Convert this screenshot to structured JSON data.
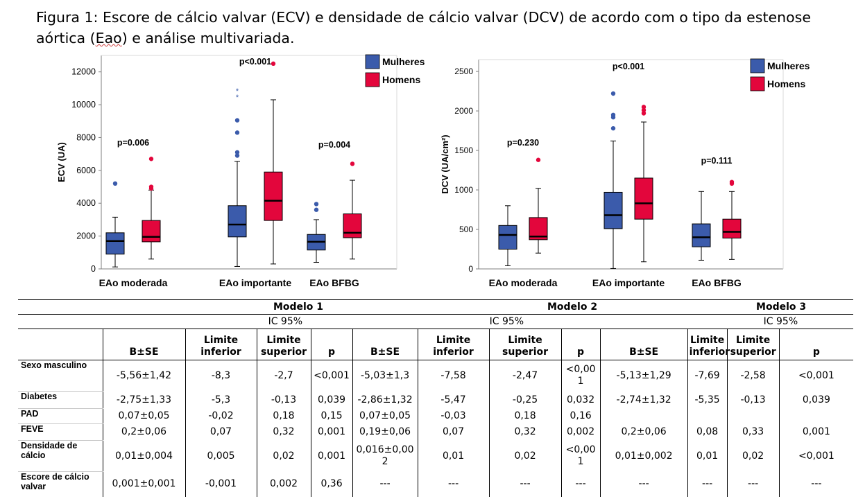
{
  "caption": {
    "text_a": "Figura 1: Escore de cálcio valvar (ECV) e densidade de cálcio valvar (DCV) de acordo com o tipo da estenose",
    "text_b": "aórtica (",
    "text_c": "Eao",
    "text_d": ") e análise multivariada."
  },
  "colors": {
    "mulheres": "#3b5bab",
    "homens": "#e3063c",
    "text": "#000000",
    "axis": "#7f7f7f"
  },
  "chart_data": [
    {
      "type": "box",
      "ylabel": "ECV (UA)",
      "ylim": [
        0,
        13000
      ],
      "yticks": [
        0,
        2000,
        4000,
        6000,
        8000,
        10000,
        12000
      ],
      "categories": [
        "EAo moderada",
        "EAo importante",
        "EAo BFBG"
      ],
      "pvalues": [
        "p=0.006",
        "p<0.001",
        "p=0.004"
      ],
      "legend": [
        "Mulheres",
        "Homens"
      ],
      "series": [
        {
          "name": "Mulheres",
          "boxes": [
            {
              "min": 120,
              "q1": 900,
              "median": 1700,
              "q3": 2200,
              "max": 3150,
              "outliers": [
                5200
              ],
              "extremes": []
            },
            {
              "min": 150,
              "q1": 1950,
              "median": 2700,
              "q3": 3850,
              "max": 6550,
              "outliers": [
                6900,
                7100,
                8300,
                9050
              ],
              "extremes": [
                10500,
                10900
              ]
            },
            {
              "min": 400,
              "q1": 1150,
              "median": 1650,
              "q3": 2100,
              "max": 3000,
              "outliers": [
                3600,
                3950
              ],
              "extremes": []
            }
          ]
        },
        {
          "name": "Homens",
          "boxes": [
            {
              "min": 600,
              "q1": 1650,
              "median": 1950,
              "q3": 2950,
              "max": 4800,
              "outliers": [
                4900,
                5000,
                6700
              ],
              "extremes": []
            },
            {
              "min": 300,
              "q1": 2950,
              "median": 4150,
              "q3": 5900,
              "max": 10300,
              "outliers": [
                12500
              ],
              "extremes": []
            },
            {
              "min": 600,
              "q1": 1900,
              "median": 2200,
              "q3": 3350,
              "max": 5400,
              "outliers": [
                6400
              ],
              "extremes": []
            }
          ]
        }
      ]
    },
    {
      "type": "box",
      "ylabel": "DCV (UA/cm²)",
      "ylim": [
        0,
        2650
      ],
      "yticks": [
        0,
        500,
        1000,
        1500,
        2000,
        2500
      ],
      "categories": [
        "EAo moderada",
        "EAo importante",
        "EAo BFBG"
      ],
      "pvalues": [
        "p=0.230",
        "p<0.001",
        "p=0.111"
      ],
      "legend": [
        "Mulheres",
        "Homens"
      ],
      "series": [
        {
          "name": "Mulheres",
          "boxes": [
            {
              "min": 40,
              "q1": 250,
              "median": 430,
              "q3": 550,
              "max": 800,
              "outliers": [],
              "extremes": []
            },
            {
              "min": 5,
              "q1": 510,
              "median": 680,
              "q3": 970,
              "max": 1620,
              "outliers": [
                1780,
                1920,
                1950,
                2220
              ],
              "extremes": []
            },
            {
              "min": 110,
              "q1": 280,
              "median": 400,
              "q3": 570,
              "max": 980,
              "outliers": [],
              "extremes": []
            }
          ]
        },
        {
          "name": "Homens",
          "boxes": [
            {
              "min": 200,
              "q1": 370,
              "median": 410,
              "q3": 650,
              "max": 1020,
              "outliers": [
                1380
              ],
              "extremes": []
            },
            {
              "min": 90,
              "q1": 630,
              "median": 830,
              "q3": 1150,
              "max": 1860,
              "outliers": [
                1970,
                2010,
                2050
              ],
              "extremes": []
            },
            {
              "min": 120,
              "q1": 390,
              "median": 470,
              "q3": 630,
              "max": 980,
              "outliers": [
                1080,
                1100
              ],
              "extremes": []
            }
          ]
        }
      ]
    }
  ],
  "table": {
    "models": [
      "Modelo 1",
      "Modelo 2",
      "Modelo 3"
    ],
    "ci": "IC 95%",
    "cols": {
      "b": "B±SE",
      "lim_inf": [
        "Limite",
        "inferior"
      ],
      "lim_sup": [
        "Limite",
        "superior"
      ],
      "p": "p"
    },
    "rows": [
      {
        "label": "Sexo masculino",
        "m1": [
          "-5,56±1,42",
          "-8,3",
          "-2,7",
          "<0,001"
        ],
        "m2": [
          "-5,03±1,3",
          "-7,58",
          "-2,47",
          "<0,00\n1"
        ],
        "m3": [
          "-5,13±1,29",
          "-7,69",
          "-2,58",
          "<0,001"
        ]
      },
      {
        "label": "Diabetes",
        "m1": [
          "-2,75±1,33",
          "-5,3",
          "-0,13",
          "0,039"
        ],
        "m2": [
          "-2,86±1,32",
          "-5,47",
          "-0,25",
          "0,032"
        ],
        "m3": [
          "-2,74±1,32",
          "-5,35",
          "-0,13",
          "0,039"
        ]
      },
      {
        "label": "PAD",
        "m1": [
          "0,07±0,05",
          "-0,02",
          "0,18",
          "0,15"
        ],
        "m2": [
          "0,07±0,05",
          "-0,03",
          "0,18",
          "0,16"
        ],
        "m3": [
          "",
          "",
          "",
          ""
        ]
      },
      {
        "label": "FEVE",
        "m1": [
          "0,2±0,06",
          "0,07",
          "0,32",
          "0,001"
        ],
        "m2": [
          "0,19±0,06",
          "0,07",
          "0,32",
          "0,002"
        ],
        "m3": [
          "0,2±0,06",
          "0,08",
          "0,33",
          "0,001"
        ]
      },
      {
        "label": "Densidade de\ncálcio",
        "m1": [
          "0,01±0,004",
          "0,005",
          "0,02",
          "0,001"
        ],
        "m2": [
          "0,016±0,00\n2",
          "0,01",
          "0,02",
          "<0,00\n1"
        ],
        "m3": [
          "0,01±0,002",
          "0,01",
          "0,02",
          "<0,001"
        ]
      },
      {
        "label": "Escore de cálcio\nvalvar",
        "m1": [
          "0,001±0,001",
          "-0,001",
          "0,002",
          "0,36"
        ],
        "m2": [
          "---",
          "---",
          "---",
          "---"
        ],
        "m3": [
          "---",
          "---",
          "---",
          "---"
        ]
      }
    ]
  }
}
